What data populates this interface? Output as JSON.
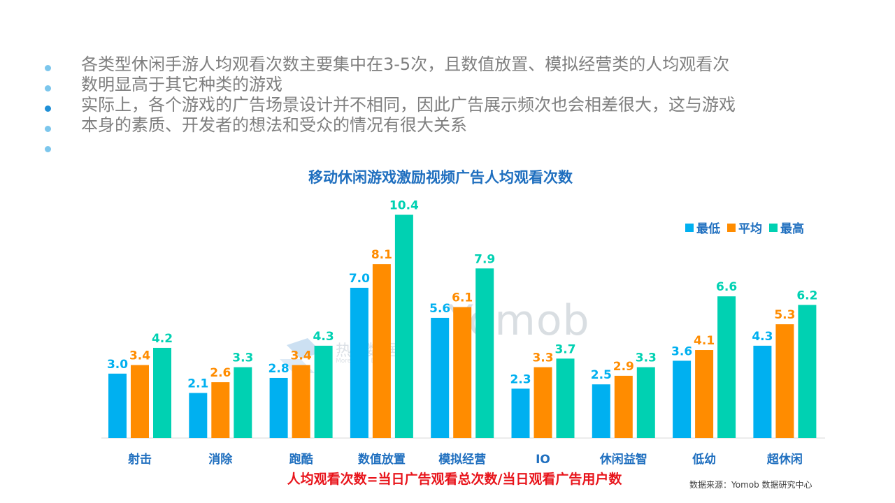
{
  "bullets": [
    {
      "text": "各类型休闲手游人均观看次数主要集中在3-5次，且数值放置、模拟经营类的人均观看次",
      "dot": "light"
    },
    {
      "text": "数明显高于其它种类的游戏",
      "dot": "light"
    },
    {
      "text": "实际上，各个游戏的广告场景设计并不相同，因此广告展示频次也会相差很大，这与游戏",
      "dot": "dark"
    },
    {
      "text": "本身的素质、开发者的想法和受众的情况有很大关系",
      "dot": "light"
    },
    {
      "text": "",
      "dot": "light"
    }
  ],
  "chart_data": {
    "type": "bar",
    "title": "移动休闲游戏激励视频广告人均观看次数",
    "categories": [
      "射击",
      "消除",
      "跑酷",
      "数值放置",
      "模拟经营",
      "IO",
      "休闲益智",
      "低幼",
      "超休闲"
    ],
    "series": [
      {
        "name": "最低",
        "color": "#00b0f0",
        "values": [
          3.0,
          2.1,
          2.8,
          7.0,
          5.6,
          2.3,
          2.5,
          3.6,
          4.3
        ]
      },
      {
        "name": "平均",
        "color": "#ff8c00",
        "values": [
          3.4,
          2.6,
          3.4,
          8.1,
          6.1,
          3.3,
          2.9,
          4.1,
          5.3
        ]
      },
      {
        "name": "最高",
        "color": "#00d1b2",
        "values": [
          4.2,
          3.3,
          4.3,
          10.4,
          7.9,
          3.7,
          3.3,
          6.6,
          6.2
        ]
      }
    ],
    "ylim": [
      0,
      11
    ],
    "grid": false,
    "legend_position": "top-right",
    "label_colors": [
      "#00b0f0",
      "#ff8c00",
      "#00d1b2"
    ],
    "category_label_color": "#1f6fbf"
  },
  "formula": "人均观看次数=当日广告观看总次数/当日观看广告用户数",
  "source": "数据来源：Yomob 数据研究中心",
  "watermarks": {
    "a_text": "热云数据",
    "a_sub": "More Than Data",
    "b_text": "Yomob"
  }
}
